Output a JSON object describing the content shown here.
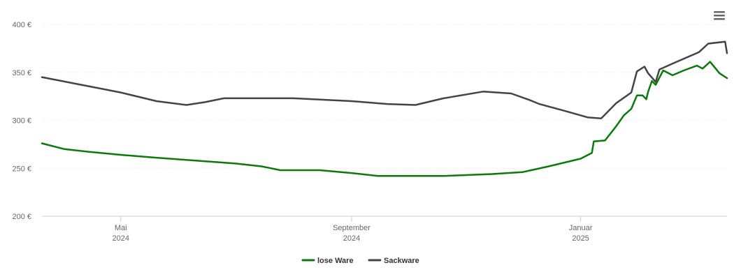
{
  "menu": {
    "icon": "hamburger-menu-icon"
  },
  "chart_data": {
    "type": "line",
    "title": "",
    "xlabel": "",
    "ylabel": "",
    "x_range": [
      "2024-03-20",
      "2025-03-20"
    ],
    "ylim": [
      200,
      400
    ],
    "y_ticks": [
      {
        "value": 200,
        "label": "200 €"
      },
      {
        "value": 250,
        "label": "250 €"
      },
      {
        "value": 300,
        "label": "300 €"
      },
      {
        "value": 350,
        "label": "350 €"
      },
      {
        "value": 400,
        "label": "400 €"
      }
    ],
    "x_ticks": [
      {
        "date": "2024-05-01",
        "month": "Mai",
        "year": "2024"
      },
      {
        "date": "2024-09-01",
        "month": "September",
        "year": "2024"
      },
      {
        "date": "2025-01-01",
        "month": "Januar",
        "year": "2025"
      }
    ],
    "grid": true,
    "legend_position": "bottom-center",
    "series": [
      {
        "name": "lose Ware",
        "color": "#0a7a0a",
        "points": [
          [
            "2024-03-20",
            276
          ],
          [
            "2024-04-01",
            270
          ],
          [
            "2024-04-15",
            267
          ],
          [
            "2024-05-01",
            264
          ],
          [
            "2024-05-20",
            261
          ],
          [
            "2024-06-10",
            258
          ],
          [
            "2024-07-01",
            255
          ],
          [
            "2024-07-15",
            252
          ],
          [
            "2024-07-25",
            248
          ],
          [
            "2024-08-15",
            248
          ],
          [
            "2024-09-01",
            245
          ],
          [
            "2024-09-15",
            242
          ],
          [
            "2024-10-01",
            242
          ],
          [
            "2024-10-20",
            242
          ],
          [
            "2024-11-15",
            244
          ],
          [
            "2024-12-01",
            246
          ],
          [
            "2024-12-15",
            252
          ],
          [
            "2025-01-01",
            260
          ],
          [
            "2025-01-07",
            266
          ],
          [
            "2025-01-08",
            278
          ],
          [
            "2025-01-14",
            279
          ],
          [
            "2025-01-20",
            294
          ],
          [
            "2025-01-24",
            305
          ],
          [
            "2025-01-28",
            312
          ],
          [
            "2025-01-31",
            326
          ],
          [
            "2025-02-03",
            326
          ],
          [
            "2025-02-05",
            322
          ],
          [
            "2025-02-06",
            330
          ],
          [
            "2025-02-08",
            341
          ],
          [
            "2025-02-10",
            337
          ],
          [
            "2025-02-14",
            352
          ],
          [
            "2025-02-19",
            347
          ],
          [
            "2025-02-25",
            352
          ],
          [
            "2025-03-04",
            357
          ],
          [
            "2025-03-07",
            354
          ],
          [
            "2025-03-11",
            361
          ],
          [
            "2025-03-16",
            349
          ],
          [
            "2025-03-20",
            344
          ]
        ]
      },
      {
        "name": "Sackware",
        "color": "#444444",
        "points": [
          [
            "2024-03-20",
            345
          ],
          [
            "2024-04-10",
            337
          ],
          [
            "2024-05-01",
            329
          ],
          [
            "2024-05-20",
            320
          ],
          [
            "2024-06-05",
            316
          ],
          [
            "2024-06-15",
            319
          ],
          [
            "2024-06-25",
            323
          ],
          [
            "2024-08-01",
            323
          ],
          [
            "2024-09-01",
            320
          ],
          [
            "2024-09-20",
            317
          ],
          [
            "2024-10-05",
            316
          ],
          [
            "2024-10-20",
            323
          ],
          [
            "2024-11-10",
            330
          ],
          [
            "2024-11-25",
            328
          ],
          [
            "2024-12-05",
            321
          ],
          [
            "2024-12-10",
            317
          ],
          [
            "2024-12-25",
            309
          ],
          [
            "2025-01-05",
            303
          ],
          [
            "2025-01-12",
            302
          ],
          [
            "2025-01-20",
            318
          ],
          [
            "2025-01-28",
            329
          ],
          [
            "2025-01-31",
            351
          ],
          [
            "2025-02-04",
            356
          ],
          [
            "2025-02-06",
            349
          ],
          [
            "2025-02-10",
            340
          ],
          [
            "2025-02-12",
            353
          ],
          [
            "2025-02-20",
            360
          ],
          [
            "2025-03-05",
            371
          ],
          [
            "2025-03-10",
            380
          ],
          [
            "2025-03-19",
            382
          ],
          [
            "2025-03-20",
            370
          ]
        ]
      }
    ]
  }
}
